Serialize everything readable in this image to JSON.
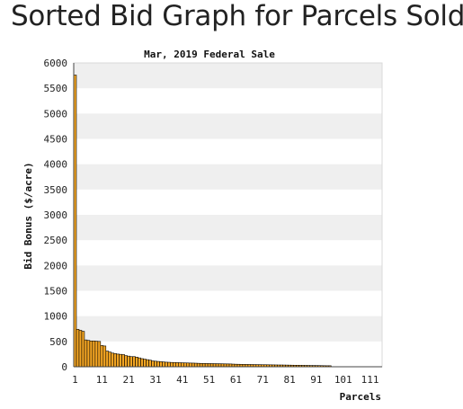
{
  "page": {
    "heading": "Sorted Bid Graph for Parcels Sold"
  },
  "chart_data": {
    "type": "bar",
    "title": "Mar, 2019 Federal Sale",
    "xlabel": "Parcels",
    "ylabel": "Bid Bonus ($/acre)",
    "ylim": [
      0,
      6000
    ],
    "yticks": [
      0,
      500,
      1000,
      1500,
      2000,
      2500,
      3000,
      3500,
      4000,
      4500,
      5000,
      5500,
      6000
    ],
    "xlim": [
      0,
      115
    ],
    "xticks": [
      1,
      11,
      21,
      31,
      41,
      51,
      61,
      71,
      81,
      91,
      101,
      111
    ],
    "grid": "alternating horizontal bands",
    "legend": "none",
    "colors": {
      "bar_fill": "#f5a623",
      "bar_stroke": "#000000",
      "band": "#efefef",
      "plot_bg": "#ffffff"
    },
    "values": [
      5760,
      740,
      720,
      700,
      530,
      520,
      510,
      510,
      505,
      500,
      420,
      410,
      310,
      290,
      270,
      260,
      250,
      245,
      240,
      220,
      210,
      200,
      200,
      190,
      175,
      160,
      150,
      140,
      130,
      115,
      110,
      105,
      100,
      95,
      90,
      88,
      85,
      84,
      82,
      80,
      78,
      76,
      75,
      73,
      72,
      70,
      68,
      66,
      65,
      64,
      63,
      62,
      61,
      60,
      59,
      58,
      57,
      56,
      55,
      52,
      50,
      49,
      48,
      47,
      46,
      45,
      44,
      43,
      42,
      41,
      40,
      40,
      39,
      38,
      37,
      36,
      35,
      35,
      34,
      33,
      32,
      31,
      30,
      30,
      29,
      28,
      27,
      26,
      25,
      25,
      24,
      23,
      22,
      21,
      20,
      20
    ]
  }
}
